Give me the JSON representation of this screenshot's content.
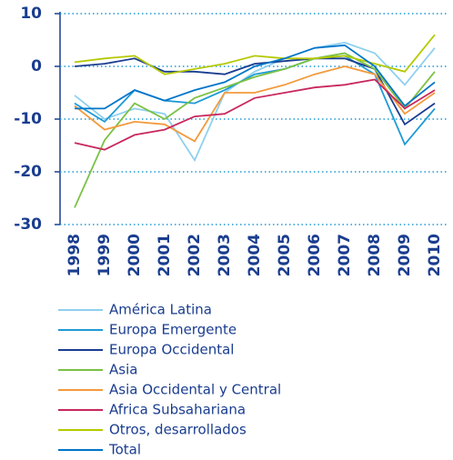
{
  "chart_data": {
    "type": "line",
    "categories": [
      "1998",
      "1999",
      "2000",
      "2001",
      "2002",
      "2003",
      "2004",
      "2005",
      "2006",
      "2007",
      "2008",
      "2009",
      "2010"
    ],
    "ylim": [
      -30,
      10
    ],
    "yticks": [
      -30,
      -20,
      -10,
      0,
      10
    ],
    "grid": true,
    "series": [
      {
        "name": "América Latina",
        "color": "#8fd0ef",
        "values": [
          -5.5,
          -10,
          -8,
          -9,
          -17.8,
          -5,
          -1,
          1.5,
          3.5,
          4.5,
          2.5,
          -3.5,
          3.5
        ]
      },
      {
        "name": "Europa Emergente",
        "color": "#1e9ad6",
        "values": [
          -7,
          -10.5,
          -4.5,
          -6.5,
          -7,
          -4.5,
          -1.5,
          -0.5,
          1.5,
          2,
          -1.5,
          -14.8,
          -8
        ]
      },
      {
        "name": "Europa Occidental",
        "color": "#1a3d8f",
        "values": [
          0,
          0.5,
          1.5,
          -1,
          -1,
          -1.5,
          0.5,
          1,
          1.5,
          1.5,
          -0.5,
          -11,
          -7
        ]
      },
      {
        "name": "Asia",
        "color": "#7ac143",
        "values": [
          -26.8,
          -14,
          -7,
          -10,
          -6,
          -4,
          -2,
          -0.5,
          1.5,
          2.5,
          -0.5,
          -8,
          -1
        ]
      },
      {
        "name": "Asia Occidental y Central",
        "color": "#f39a3c",
        "values": [
          -7.5,
          -12,
          -10.5,
          -11,
          -14.2,
          -5,
          -5,
          -3.5,
          -1.5,
          0,
          -1.5,
          -9,
          -5
        ]
      },
      {
        "name": "Africa Subsahariana",
        "color": "#c8285d",
        "values": [
          -14.5,
          -15.8,
          -13,
          -12,
          -9.5,
          -9,
          -6,
          -5,
          -4,
          -3.5,
          -2.5,
          -8,
          -4.5
        ]
      },
      {
        "name": "Otros, desarrollados",
        "color": "#b5c900",
        "values": [
          0.8,
          1.5,
          2,
          -1.5,
          -0.5,
          0.5,
          2,
          1.5,
          1.5,
          2,
          0.5,
          -1,
          6
        ]
      },
      {
        "name": "Total",
        "color": "#0075c9",
        "values": [
          -8,
          -8,
          -4.5,
          -6.5,
          -4.5,
          -3,
          0,
          1.5,
          3.5,
          4,
          0,
          -7.5,
          -3
        ]
      }
    ]
  }
}
